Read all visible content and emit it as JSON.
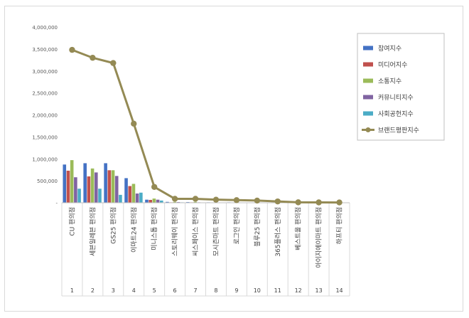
{
  "chart_data": {
    "type": "bar",
    "title": "",
    "xlabel": "",
    "ylabel": "",
    "ylim": [
      0,
      4000000
    ],
    "yticks": [
      "-",
      "500,000",
      "1,000,000",
      "1,500,000",
      "2,000,000",
      "2,500,000",
      "3,000,000",
      "3,500,000",
      "4,000,000"
    ],
    "grid": false,
    "legend_position": "right",
    "categories": [
      "CU 편의점",
      "세븐일레븐 편의점",
      "GS25 편의점",
      "이마트24 편의점",
      "미니스톱 편의점",
      "스토리웨이 편의점",
      "씨스페이스 편의점",
      "모시즌마트 편의점",
      "로그인 편의점",
      "블루25 편의점",
      "365플러스 편의점",
      "베스트올 편의점",
      "아이지에이마트 편의점",
      "하프티 편의점"
    ],
    "indices": [
      "1",
      "2",
      "3",
      "4",
      "5",
      "6",
      "7",
      "8",
      "9",
      "10",
      "11",
      "12",
      "13",
      "14"
    ],
    "series": [
      {
        "name": "참여지수",
        "kind": "bar",
        "color": "#4472c4",
        "values": [
          870000,
          900000,
          900000,
          560000,
          70000,
          20000,
          15000,
          10000,
          10000,
          8000,
          6000,
          3000,
          2000,
          2000
        ]
      },
      {
        "name": "미디어지수",
        "kind": "bar",
        "color": "#c0504d",
        "values": [
          730000,
          600000,
          740000,
          380000,
          65000,
          10000,
          10000,
          5000,
          5000,
          4000,
          3000,
          2000,
          1000,
          1000
        ]
      },
      {
        "name": "소통지수",
        "kind": "bar",
        "color": "#9bbb59",
        "values": [
          970000,
          780000,
          740000,
          430000,
          95000,
          20000,
          20000,
          10000,
          10000,
          8000,
          5000,
          3000,
          2000,
          2000
        ]
      },
      {
        "name": "커뮤니티지수",
        "kind": "bar",
        "color": "#8064a2",
        "values": [
          580000,
          690000,
          610000,
          210000,
          70000,
          15000,
          10000,
          8000,
          5000,
          5000,
          4000,
          2000,
          1000,
          1000
        ]
      },
      {
        "name": "사회공헌지수",
        "kind": "bar",
        "color": "#4bacc6",
        "values": [
          320000,
          320000,
          180000,
          230000,
          50000,
          10000,
          8000,
          5000,
          5000,
          5000,
          3000,
          2000,
          1000,
          1000
        ]
      },
      {
        "name": "브랜드평판지수",
        "kind": "line",
        "color": "#948a54",
        "values": [
          3480000,
          3300000,
          3180000,
          1800000,
          360000,
          90000,
          90000,
          70000,
          60000,
          50000,
          30000,
          10000,
          8000,
          7000
        ]
      }
    ]
  }
}
